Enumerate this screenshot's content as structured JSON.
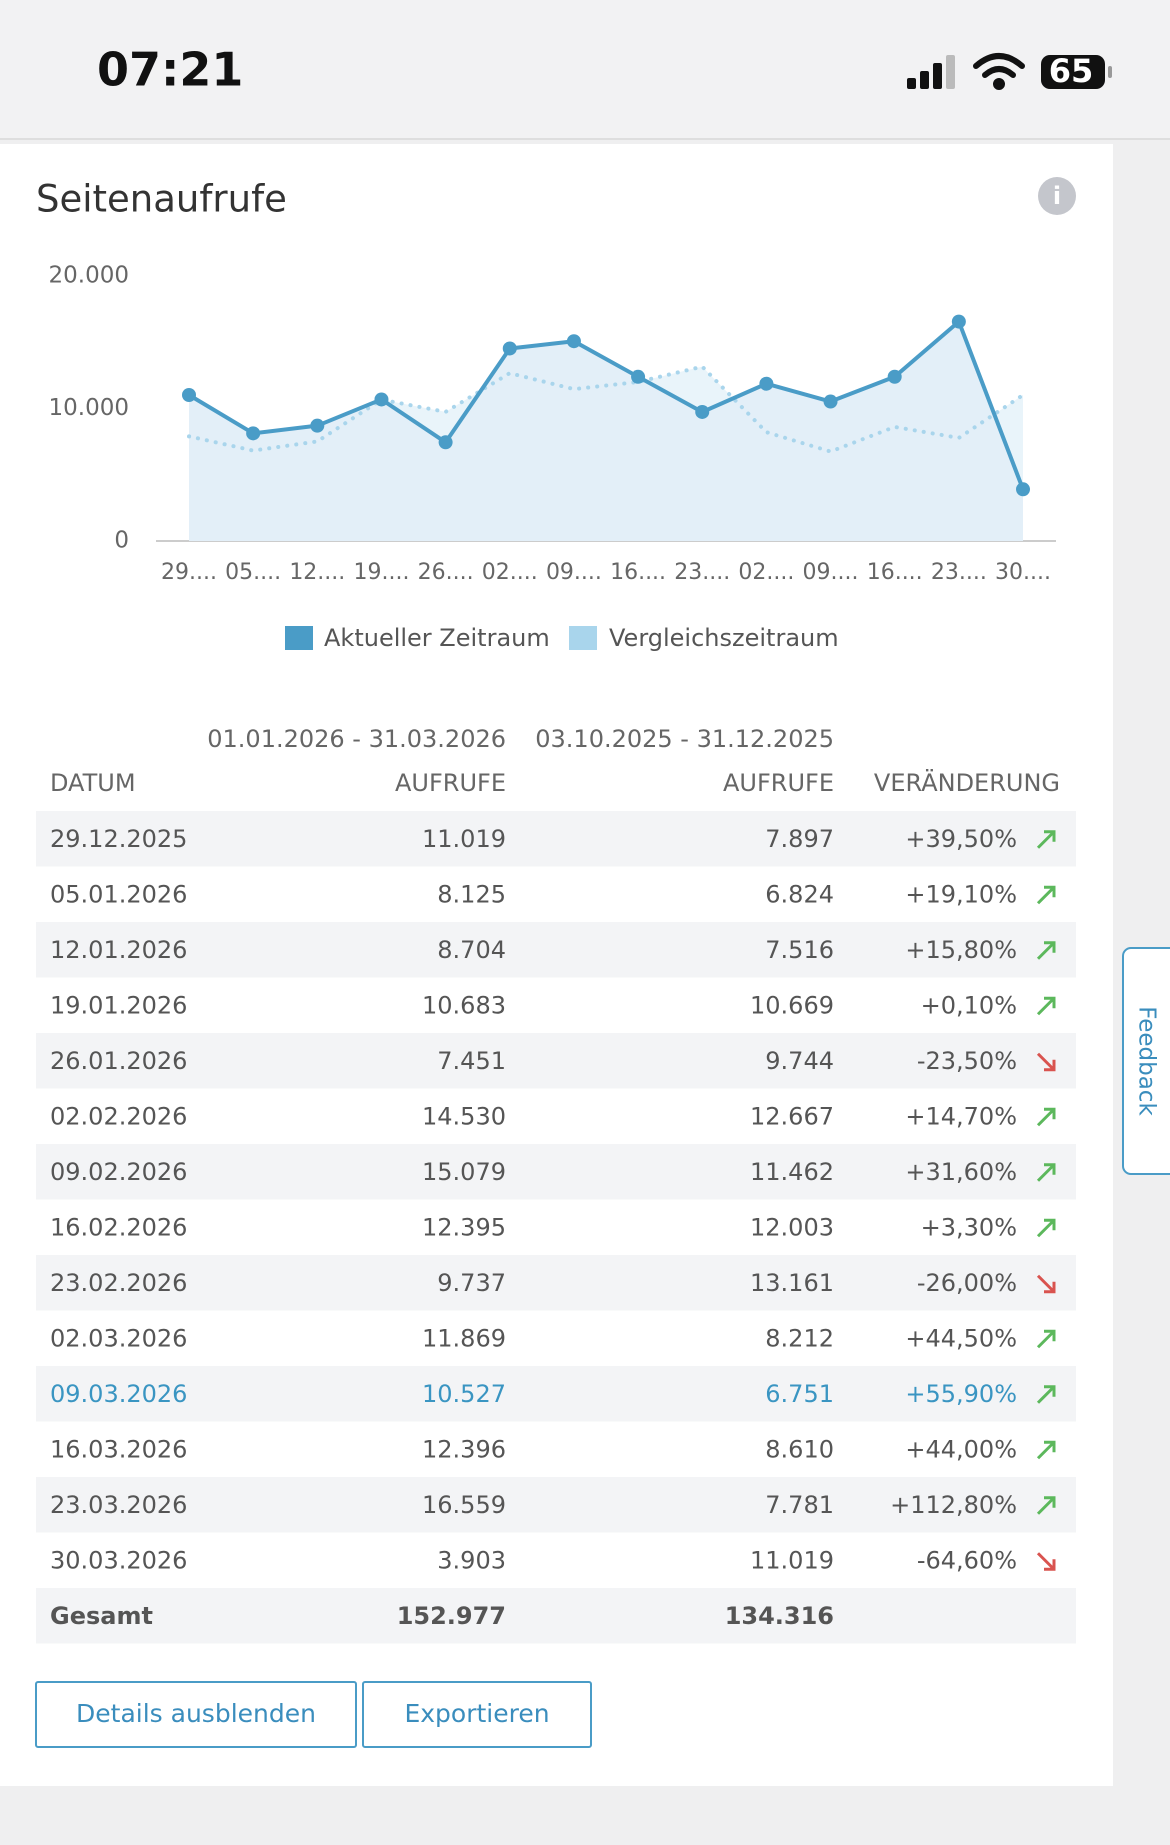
{
  "status_bar": {
    "time": "07:21",
    "battery": "65"
  },
  "chart_data": {
    "type": "line",
    "title": "Seitenaufrufe",
    "categories": [
      "29....",
      "05....",
      "12....",
      "19....",
      "26....",
      "02....",
      "09....",
      "16....",
      "23....",
      "02....",
      "09....",
      "16....",
      "23....",
      "30...."
    ],
    "series": [
      {
        "name": "Aktueller Zeitraum",
        "color": "#4a9cc7",
        "area_color": "#e3eff8",
        "values": [
          11019,
          8125,
          8704,
          10683,
          7451,
          14530,
          15079,
          12395,
          9737,
          11869,
          10527,
          12396,
          16559,
          3903
        ]
      },
      {
        "name": "Vergleichszeitraum",
        "color": "#a9d5ec",
        "style": "dotted",
        "values": [
          7897,
          6824,
          7516,
          10669,
          9744,
          12667,
          11462,
          12003,
          13161,
          8212,
          6751,
          8610,
          7781,
          11019
        ]
      }
    ],
    "ylim": [
      0,
      20000
    ],
    "yticks": [
      {
        "value": 0,
        "label": "0"
      },
      {
        "value": 10000,
        "label": "10.000"
      },
      {
        "value": 20000,
        "label": "20.000"
      }
    ]
  },
  "table": {
    "periods": [
      "01.01.2026 - 31.03.2026",
      "03.10.2025 - 31.12.2025"
    ],
    "headers": [
      "DATUM",
      "AUFRUFE",
      "AUFRUFE",
      "VERÄNDERUNG"
    ],
    "rows": [
      [
        "29.12.2025",
        "11.019",
        "7.897",
        "+39,50%"
      ],
      [
        "05.01.2026",
        "8.125",
        "6.824",
        "+19,10%"
      ],
      [
        "12.01.2026",
        "8.704",
        "7.516",
        "+15,80%"
      ],
      [
        "19.01.2026",
        "10.683",
        "10.669",
        "+0,10%"
      ],
      [
        "26.01.2026",
        "7.451",
        "9.744",
        "-23,50%"
      ],
      [
        "02.02.2026",
        "14.530",
        "12.667",
        "+14,70%"
      ],
      [
        "09.02.2026",
        "15.079",
        "11.462",
        "+31,60%"
      ],
      [
        "16.02.2026",
        "12.395",
        "12.003",
        "+3,30%"
      ],
      [
        "23.02.2026",
        "9.737",
        "13.161",
        "-26,00%"
      ],
      [
        "02.03.2026",
        "11.869",
        "8.212",
        "+44,50%"
      ],
      [
        "09.03.2026",
        "10.527",
        "6.751",
        "+55,90%"
      ],
      [
        "16.03.2026",
        "12.396",
        "8.610",
        "+44,00%"
      ],
      [
        "23.03.2026",
        "16.559",
        "7.781",
        "+112,80%"
      ],
      [
        "30.03.2026",
        "3.903",
        "11.019",
        "-64,60%"
      ]
    ],
    "total": [
      "Gesamt",
      "152.977",
      "134.316"
    ]
  },
  "buttons": [
    "Details ausblenden",
    "Exportieren"
  ],
  "feedback": "Feedback"
}
